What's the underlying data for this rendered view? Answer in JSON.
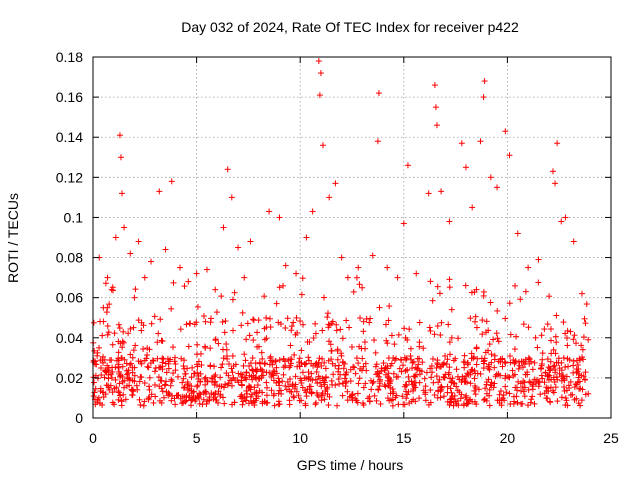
{
  "chart_data": {
    "type": "scatter",
    "title": "Day 032 of 2024, Rate Of TEC Index for receiver p422",
    "xlabel": "GPS time / hours",
    "ylabel": "ROTI / TECUs",
    "xlim": [
      0,
      25
    ],
    "ylim": [
      0,
      0.18
    ],
    "x_ticks": [
      "0",
      "5",
      "10",
      "15",
      "20",
      "25"
    ],
    "y_ticks": [
      "0",
      "0.02",
      "0.04",
      "0.06",
      "0.08",
      "0.1",
      "0.12",
      "0.14",
      "0.16",
      "0.18"
    ],
    "grid": true,
    "marker": "+",
    "series_color": "#ff0000",
    "sampled_points": [
      [
        0.2,
        0.031
      ],
      [
        0.3,
        0.08
      ],
      [
        0.5,
        0.055
      ],
      [
        0.7,
        0.07
      ],
      [
        0.9,
        0.064
      ],
      [
        1.1,
        0.09
      ],
      [
        1.3,
        0.141
      ],
      [
        1.35,
        0.13
      ],
      [
        1.4,
        0.112
      ],
      [
        1.5,
        0.095
      ],
      [
        1.8,
        0.082
      ],
      [
        2.0,
        0.06
      ],
      [
        2.2,
        0.088
      ],
      [
        2.5,
        0.07
      ],
      [
        2.8,
        0.078
      ],
      [
        3.2,
        0.113
      ],
      [
        3.5,
        0.084
      ],
      [
        3.8,
        0.118
      ],
      [
        4.2,
        0.075
      ],
      [
        4.6,
        0.068
      ],
      [
        5.0,
        0.072
      ],
      [
        5.5,
        0.074
      ],
      [
        5.9,
        0.064
      ],
      [
        6.3,
        0.095
      ],
      [
        6.5,
        0.124
      ],
      [
        6.7,
        0.11
      ],
      [
        7.0,
        0.085
      ],
      [
        7.3,
        0.07
      ],
      [
        7.6,
        0.088
      ],
      [
        8.5,
        0.103
      ],
      [
        9.0,
        0.1
      ],
      [
        9.3,
        0.076
      ],
      [
        9.8,
        0.072
      ],
      [
        10.3,
        0.09
      ],
      [
        10.6,
        0.103
      ],
      [
        10.9,
        0.178
      ],
      [
        11.0,
        0.172
      ],
      [
        10.95,
        0.161
      ],
      [
        11.1,
        0.136
      ],
      [
        11.4,
        0.11
      ],
      [
        11.7,
        0.117
      ],
      [
        12.0,
        0.08
      ],
      [
        12.3,
        0.07
      ],
      [
        12.8,
        0.075
      ],
      [
        13.5,
        0.081
      ],
      [
        13.8,
        0.162
      ],
      [
        13.75,
        0.138
      ],
      [
        14.2,
        0.075
      ],
      [
        14.7,
        0.07
      ],
      [
        15.0,
        0.097
      ],
      [
        15.2,
        0.126
      ],
      [
        15.6,
        0.072
      ],
      [
        16.2,
        0.112
      ],
      [
        16.5,
        0.166
      ],
      [
        16.55,
        0.155
      ],
      [
        16.6,
        0.146
      ],
      [
        16.8,
        0.113
      ],
      [
        17.2,
        0.098
      ],
      [
        17.8,
        0.137
      ],
      [
        18.0,
        0.125
      ],
      [
        18.3,
        0.105
      ],
      [
        18.7,
        0.138
      ],
      [
        18.9,
        0.168
      ],
      [
        18.85,
        0.16
      ],
      [
        19.2,
        0.12
      ],
      [
        19.5,
        0.115
      ],
      [
        19.9,
        0.143
      ],
      [
        20.1,
        0.131
      ],
      [
        20.5,
        0.092
      ],
      [
        21.0,
        0.075
      ],
      [
        21.5,
        0.079
      ],
      [
        22.2,
        0.123
      ],
      [
        22.3,
        0.117
      ],
      [
        22.4,
        0.137
      ],
      [
        22.6,
        0.098
      ],
      [
        22.8,
        0.1
      ],
      [
        23.2,
        0.088
      ],
      [
        23.6,
        0.062
      ],
      [
        23.9,
        0.039
      ]
    ]
  }
}
